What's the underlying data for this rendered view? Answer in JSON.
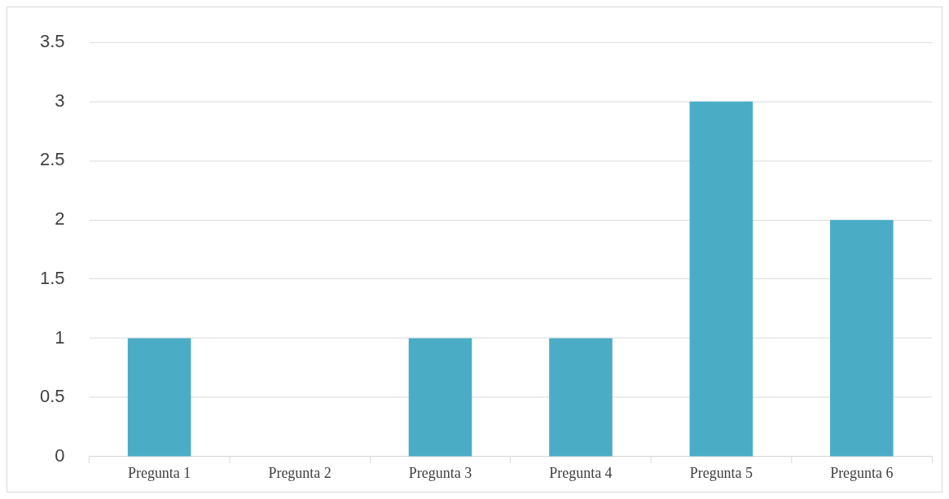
{
  "chart_data": {
    "type": "bar",
    "categories": [
      "Pregunta 1",
      "Pregunta 2",
      "Pregunta 3",
      "Pregunta 4",
      "Pregunta 5",
      "Pregunta 6"
    ],
    "values": [
      1,
      0,
      1,
      1,
      3,
      2
    ],
    "color": "#4bacc6",
    "ylim": [
      0,
      3.5
    ],
    "yticks": [
      0,
      0.5,
      1,
      1.5,
      2,
      2.5,
      3,
      3.5
    ],
    "grid": "y",
    "legend": false
  }
}
